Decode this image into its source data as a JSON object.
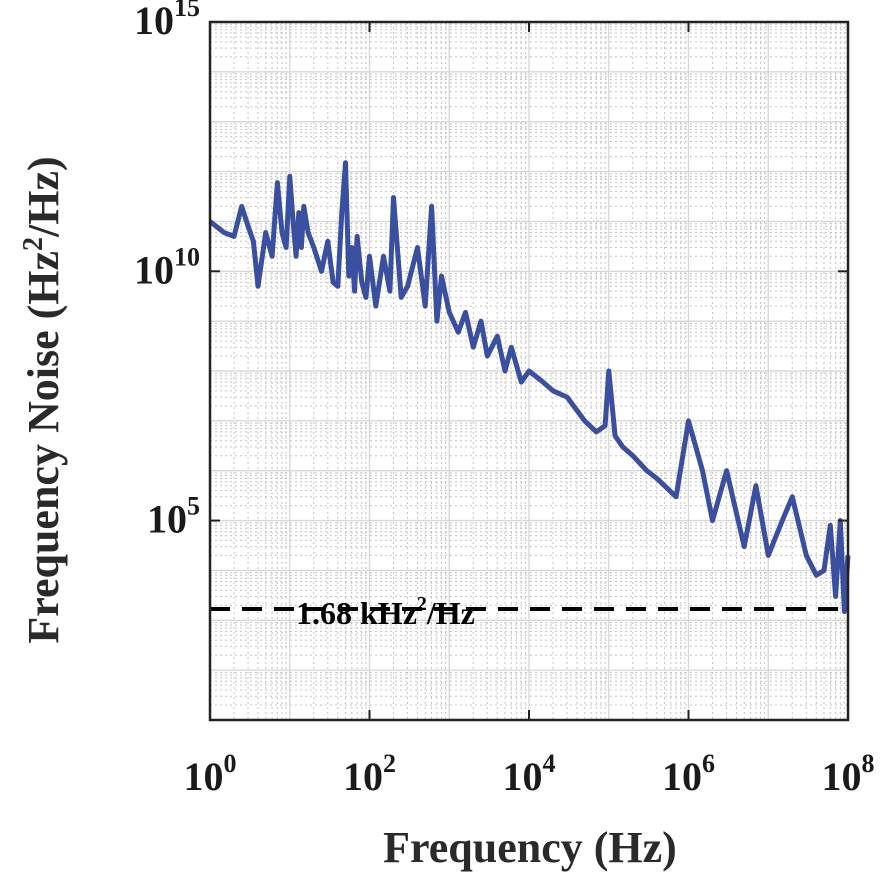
{
  "chart_data": {
    "type": "line",
    "title": "",
    "xlabel": "Frequency (Hz)",
    "ylabel_parts": {
      "pre": "Frequency Noise (Hz",
      "sup": "2",
      "post": "/Hz)"
    },
    "x_scale": "log",
    "y_scale": "log",
    "xlim": [
      1,
      100000000
    ],
    "ylim": [
      10,
      1000000000000000
    ],
    "grid": true,
    "x_ticks": [
      {
        "base": "10",
        "exp": "0",
        "value": 1
      },
      {
        "base": "10",
        "exp": "2",
        "value": 100
      },
      {
        "base": "10",
        "exp": "4",
        "value": 10000
      },
      {
        "base": "10",
        "exp": "6",
        "value": 1000000
      },
      {
        "base": "10",
        "exp": "8",
        "value": 100000000
      }
    ],
    "y_ticks": [
      {
        "base": "10",
        "exp": "5",
        "value": 100000
      },
      {
        "base": "10",
        "exp": "10",
        "value": 10000000000
      },
      {
        "base": "10",
        "exp": "15",
        "value": 1000000000000000
      }
    ],
    "series": [
      {
        "color": "#3a4fa0",
        "x": [
          1,
          1.5,
          2,
          2.5,
          3,
          3.5,
          4,
          5,
          6,
          7,
          8,
          9,
          10,
          11,
          12,
          13,
          14,
          15,
          17,
          20,
          25,
          30,
          35,
          40,
          45,
          50,
          55,
          60,
          65,
          70,
          80,
          90,
          100,
          120,
          150,
          180,
          200,
          250,
          300,
          400,
          500,
          600,
          700,
          800,
          1000,
          1300,
          1600,
          2000,
          2500,
          3000,
          4000,
          5000,
          6000,
          8000,
          10000,
          15000,
          20000,
          30000,
          50000,
          70000,
          90000,
          100000,
          120000,
          150000,
          200000,
          300000,
          400000,
          500000,
          700000,
          1000000,
          1500000,
          2000000,
          3000000,
          5000000,
          7000000,
          10000000,
          15000000,
          20000000,
          30000000,
          40000000,
          50000000,
          60000000,
          70000000,
          80000000,
          90000000,
          100000000
        ],
        "y": [
          100000000000,
          60000000000,
          50000000000,
          200000000000,
          80000000000,
          40000000000,
          5000000000,
          60000000000,
          20000000000,
          600000000000,
          60000000000,
          30000000000,
          800000000000,
          100000000000,
          20000000000,
          150000000000,
          30000000000,
          200000000000,
          60000000000,
          30000000000,
          10000000000,
          40000000000,
          6000000000,
          5000000000,
          150000000000,
          1500000000000,
          8000000000,
          30000000000,
          4000000000,
          50000000000,
          6000000000,
          3000000000,
          20000000000,
          2000000000,
          20000000000,
          4000000000,
          300000000000,
          3000000000,
          5000000000,
          30000000000,
          2000000000,
          200000000000,
          1000000000,
          8000000000,
          1500000000,
          600000000,
          1500000000,
          300000000,
          1000000000,
          200000000,
          500000000,
          100000000,
          300000000,
          60000000,
          100000000,
          60000000,
          40000000,
          30000000,
          10000000,
          6000000,
          8000000,
          100000000,
          5000000,
          3000000,
          2000000,
          1000000,
          700000,
          500000,
          300000,
          10000000,
          1000000,
          100000,
          1000000,
          30000,
          500000,
          20000,
          100000,
          300000,
          20000,
          8000,
          10000,
          80000,
          3000,
          100000,
          1500,
          20000
        ]
      }
    ],
    "reference_line": {
      "value": 1680,
      "label_pre": "1.68 kHz",
      "label_sup": "2",
      "label_post": "/Hz",
      "style": "dashed",
      "color": "#000000"
    }
  }
}
